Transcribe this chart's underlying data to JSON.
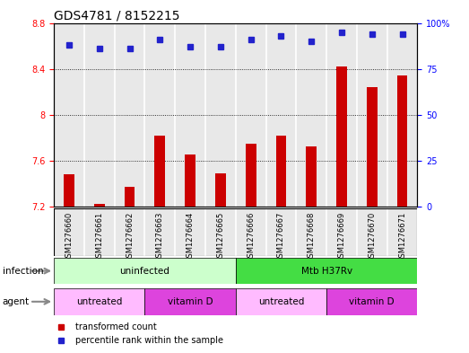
{
  "title": "GDS4781 / 8152215",
  "samples": [
    "GSM1276660",
    "GSM1276661",
    "GSM1276662",
    "GSM1276663",
    "GSM1276664",
    "GSM1276665",
    "GSM1276666",
    "GSM1276667",
    "GSM1276668",
    "GSM1276669",
    "GSM1276670",
    "GSM1276671"
  ],
  "transformed_count": [
    7.48,
    7.22,
    7.37,
    7.82,
    7.65,
    7.49,
    7.75,
    7.82,
    7.72,
    8.42,
    8.24,
    8.34
  ],
  "percentile_rank": [
    88,
    86,
    86,
    91,
    87,
    87,
    91,
    93,
    90,
    95,
    94,
    94
  ],
  "ylim_left": [
    7.2,
    8.8
  ],
  "ylim_right": [
    0,
    100
  ],
  "yticks_left": [
    7.2,
    7.6,
    8.0,
    8.4,
    8.8
  ],
  "yticks_right": [
    0,
    25,
    50,
    75,
    100
  ],
  "bar_color": "#cc0000",
  "dot_color": "#2222cc",
  "infection_groups": [
    {
      "label": "uninfected",
      "start": 0,
      "end": 6,
      "color": "#ccffcc"
    },
    {
      "label": "Mtb H37Rv",
      "start": 6,
      "end": 12,
      "color": "#44dd44"
    }
  ],
  "agent_groups": [
    {
      "label": "untreated",
      "start": 0,
      "end": 3,
      "color": "#ffbbff"
    },
    {
      "label": "vitamin D",
      "start": 3,
      "end": 6,
      "color": "#dd44dd"
    },
    {
      "label": "untreated",
      "start": 6,
      "end": 9,
      "color": "#ffbbff"
    },
    {
      "label": "vitamin D",
      "start": 9,
      "end": 12,
      "color": "#dd44dd"
    }
  ],
  "bar_width": 0.35,
  "title_fontsize": 10,
  "tick_fontsize": 7,
  "sample_fontsize": 6,
  "label_fontsize": 7.5,
  "row_label_fontsize": 7.5,
  "legend_fontsize": 7,
  "bg_color": "#e8e8e8"
}
